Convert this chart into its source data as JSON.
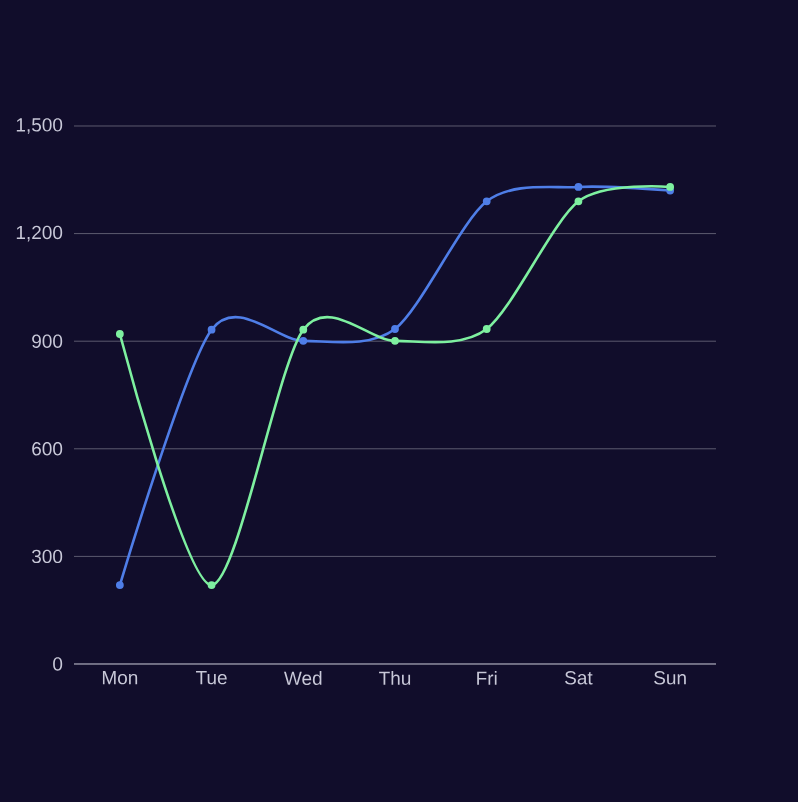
{
  "chart_data": {
    "type": "line",
    "categories": [
      "Mon",
      "Tue",
      "Wed",
      "Thu",
      "Fri",
      "Sat",
      "Sun"
    ],
    "series": [
      {
        "color": "#4f7ee8",
        "values": [
          220,
          932,
          901,
          934,
          1290,
          1330,
          1320
        ]
      },
      {
        "color": "#7ef0a0",
        "values": [
          920,
          220,
          932,
          901,
          934,
          1290,
          1330
        ]
      }
    ],
    "ylim": [
      0,
      1500
    ],
    "yticks": [
      0,
      {
        "value": 300,
        "label": "300"
      },
      {
        "value": 600,
        "label": "600"
      },
      {
        "value": 900,
        "label": "900"
      },
      {
        "value": 1200,
        "label": "1,200"
      },
      {
        "value": 1500,
        "label": "1,500"
      }
    ],
    "grid": "y",
    "marker": "circle",
    "line_style": "solid"
  }
}
